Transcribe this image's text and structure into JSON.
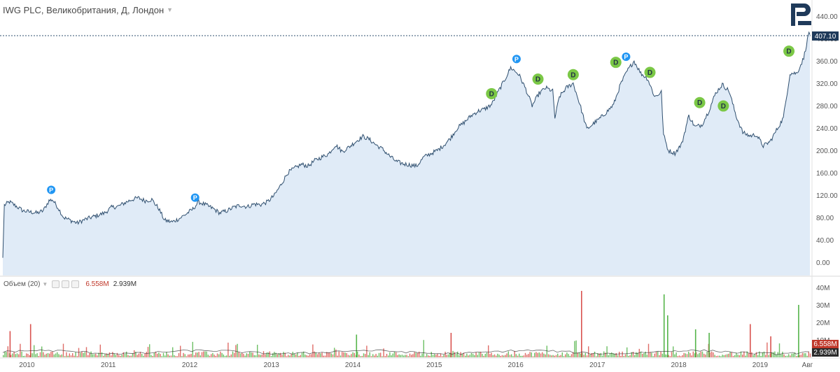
{
  "header": {
    "title": "IWG PLC, Великобритания, Д, Лондон"
  },
  "price_badge": "407.10",
  "volume_panel": {
    "label": "Объем (20)",
    "value_red": "6.558M",
    "value_black": "2.939M",
    "badge_red": "6.558M",
    "badge_black": "2.939M"
  },
  "colors": {
    "line": "#2f4f6f",
    "area": "#dbe8f6",
    "badge_bg": "#1f3a5a",
    "marker_d": "#7bc846",
    "marker_p": "#2196f3",
    "vol_up": "#55b44a",
    "vol_down": "#d9534f",
    "logo": "#1f3a5a"
  },
  "icons": {
    "logo": "brand-logo-icon",
    "marker_d": "dividend-marker-icon",
    "marker_p": "split-marker-icon"
  },
  "chart_data": [
    {
      "type": "area",
      "title": "IWG PLC, Великобритания, Д, Лондон",
      "ylim": [
        -20,
        450
      ],
      "y_ticks": [
        "0.00",
        "40.00",
        "80.00",
        "120.00",
        "160.00",
        "200.00",
        "240.00",
        "280.00",
        "320.00",
        "360.00",
        "400.00",
        "440.00"
      ],
      "x_ticks": [
        "2010",
        "2011",
        "2012",
        "2013",
        "2014",
        "2015",
        "2016",
        "2017",
        "2018",
        "2019",
        "Авг"
      ],
      "last_price": 407.1,
      "grid": false,
      "series": [
        {
          "values_by_date": [
            [
              "2009-09-15",
              8
            ],
            [
              "2009-09-22",
              102
            ],
            [
              "2009-10-15",
              108
            ],
            [
              "2009-11-15",
              100
            ],
            [
              "2009-12-15",
              92
            ],
            [
              "2010-01-15",
              90
            ],
            [
              "2010-02-15",
              88
            ],
            [
              "2010-03-15",
              92
            ],
            [
              "2010-04-10",
              110
            ],
            [
              "2010-04-25",
              112
            ],
            [
              "2010-05-20",
              98
            ],
            [
              "2010-06-15",
              80
            ],
            [
              "2010-07-15",
              75
            ],
            [
              "2010-08-15",
              70
            ],
            [
              "2010-09-15",
              76
            ],
            [
              "2010-10-15",
              80
            ],
            [
              "2010-11-15",
              84
            ],
            [
              "2010-12-15",
              88
            ],
            [
              "2011-01-15",
              98
            ],
            [
              "2011-02-15",
              100
            ],
            [
              "2011-03-15",
              106
            ],
            [
              "2011-04-15",
              112
            ],
            [
              "2011-05-15",
              115
            ],
            [
              "2011-06-15",
              110
            ],
            [
              "2011-07-15",
              112
            ],
            [
              "2011-08-15",
              96
            ],
            [
              "2011-09-10",
              75
            ],
            [
              "2011-10-15",
              72
            ],
            [
              "2011-11-15",
              78
            ],
            [
              "2011-12-15",
              86
            ],
            [
              "2012-01-15",
              95
            ],
            [
              "2012-02-10",
              108
            ],
            [
              "2012-03-15",
              102
            ],
            [
              "2012-04-15",
              96
            ],
            [
              "2012-05-15",
              88
            ],
            [
              "2012-06-15",
              92
            ],
            [
              "2012-07-15",
              98
            ],
            [
              "2012-08-15",
              102
            ],
            [
              "2012-09-15",
              99
            ],
            [
              "2012-10-15",
              104
            ],
            [
              "2012-11-15",
              103
            ],
            [
              "2012-12-15",
              108
            ],
            [
              "2013-01-15",
              120
            ],
            [
              "2013-02-15",
              140
            ],
            [
              "2013-03-15",
              160
            ],
            [
              "2013-04-15",
              168
            ],
            [
              "2013-05-15",
              175
            ],
            [
              "2013-06-15",
              172
            ],
            [
              "2013-07-15",
              182
            ],
            [
              "2013-08-15",
              188
            ],
            [
              "2013-09-15",
              194
            ],
            [
              "2013-10-15",
              210
            ],
            [
              "2013-11-15",
              198
            ],
            [
              "2013-12-15",
              206
            ],
            [
              "2014-01-15",
              216
            ],
            [
              "2014-02-15",
              225
            ],
            [
              "2014-03-15",
              220
            ],
            [
              "2014-04-15",
              210
            ],
            [
              "2014-05-15",
              202
            ],
            [
              "2014-06-15",
              190
            ],
            [
              "2014-07-15",
              180
            ],
            [
              "2014-08-15",
              176
            ],
            [
              "2014-09-15",
              174
            ],
            [
              "2014-10-15",
              172
            ],
            [
              "2014-11-15",
              188
            ],
            [
              "2014-12-15",
              194
            ],
            [
              "2015-01-15",
              200
            ],
            [
              "2015-02-15",
              210
            ],
            [
              "2015-03-15",
              222
            ],
            [
              "2015-04-15",
              240
            ],
            [
              "2015-05-15",
              250
            ],
            [
              "2015-06-15",
              262
            ],
            [
              "2015-07-15",
              270
            ],
            [
              "2015-08-15",
              274
            ],
            [
              "2015-09-15",
              282
            ],
            [
              "2015-10-15",
              305
            ],
            [
              "2015-11-15",
              328
            ],
            [
              "2015-12-10",
              348
            ],
            [
              "2016-01-15",
              336
            ],
            [
              "2016-02-15",
              310
            ],
            [
              "2016-03-15",
              280
            ],
            [
              "2016-04-15",
              302
            ],
            [
              "2016-05-15",
              312
            ],
            [
              "2016-06-15",
              306
            ],
            [
              "2016-06-25",
              258
            ],
            [
              "2016-07-15",
              296
            ],
            [
              "2016-08-15",
              312
            ],
            [
              "2016-09-15",
              320
            ],
            [
              "2016-10-15",
              282
            ],
            [
              "2016-11-15",
              238
            ],
            [
              "2016-12-15",
              248
            ],
            [
              "2017-01-15",
              258
            ],
            [
              "2017-02-15",
              270
            ],
            [
              "2017-03-15",
              282
            ],
            [
              "2017-04-15",
              318
            ],
            [
              "2017-05-15",
              342
            ],
            [
              "2017-06-15",
              360
            ],
            [
              "2017-07-15",
              338
            ],
            [
              "2017-08-15",
              328
            ],
            [
              "2017-09-15",
              296
            ],
            [
              "2017-10-15",
              304
            ],
            [
              "2017-10-25",
              228
            ],
            [
              "2017-11-15",
              200
            ],
            [
              "2017-12-15",
              195
            ],
            [
              "2018-01-15",
              212
            ],
            [
              "2018-02-15",
              262
            ],
            [
              "2018-03-15",
              242
            ],
            [
              "2018-04-15",
              246
            ],
            [
              "2018-05-15",
              270
            ],
            [
              "2018-06-15",
              302
            ],
            [
              "2018-07-15",
              318
            ],
            [
              "2018-08-15",
              306
            ],
            [
              "2018-09-15",
              262
            ],
            [
              "2018-10-15",
              232
            ],
            [
              "2018-11-15",
              226
            ],
            [
              "2018-12-15",
              228
            ],
            [
              "2019-01-15",
              208
            ],
            [
              "2019-02-15",
              216
            ],
            [
              "2019-03-15",
              236
            ],
            [
              "2019-04-15",
              258
            ],
            [
              "2019-05-15",
              338
            ],
            [
              "2019-06-15",
              338
            ],
            [
              "2019-07-15",
              365
            ],
            [
              "2019-08-01",
              398
            ],
            [
              "2019-08-08",
              412
            ],
            [
              "2019-08-12",
              407.1
            ]
          ]
        }
      ],
      "markers": [
        {
          "label": "P",
          "date": "2010-04-20",
          "value": 112
        },
        {
          "label": "P",
          "date": "2012-01-25",
          "value": 98
        },
        {
          "label": "D",
          "date": "2015-09-15",
          "value": 284
        },
        {
          "label": "P",
          "date": "2016-01-05",
          "value": 346
        },
        {
          "label": "D",
          "date": "2016-04-10",
          "value": 310
        },
        {
          "label": "D",
          "date": "2016-09-15",
          "value": 318
        },
        {
          "label": "D",
          "date": "2017-03-25",
          "value": 340
        },
        {
          "label": "P",
          "date": "2017-05-10",
          "value": 350
        },
        {
          "label": "D",
          "date": "2017-08-25",
          "value": 322
        },
        {
          "label": "D",
          "date": "2018-04-05",
          "value": 268
        },
        {
          "label": "D",
          "date": "2018-07-20",
          "value": 262
        },
        {
          "label": "D",
          "date": "2019-05-10",
          "value": 360
        }
      ]
    },
    {
      "type": "bar",
      "title": "Объем (20)",
      "ylim": [
        0,
        42
      ],
      "y_ticks": [
        "10M",
        "20M",
        "30M",
        "40M"
      ],
      "unit": "M",
      "spikes": [
        {
          "date": "2016-10-20",
          "value": 38,
          "direction": "down"
        },
        {
          "date": "2017-10-25",
          "value": 36,
          "direction": "up"
        },
        {
          "date": "2017-11-10",
          "value": 24,
          "direction": "up"
        },
        {
          "date": "2019-06-20",
          "value": 30,
          "direction": "up"
        },
        {
          "date": "2018-11-15",
          "value": 19,
          "direction": "down"
        },
        {
          "date": "2015-03-15",
          "value": 14,
          "direction": "down"
        },
        {
          "date": "2014-01-15",
          "value": 13,
          "direction": "up"
        },
        {
          "date": "2010-01-15",
          "value": 19,
          "direction": "down"
        },
        {
          "date": "2009-10-15",
          "value": 15,
          "direction": "down"
        },
        {
          "date": "2018-03-15",
          "value": 16,
          "direction": "up"
        },
        {
          "date": "2018-05-15",
          "value": 14,
          "direction": "up"
        },
        {
          "date": "2019-02-15",
          "value": 12,
          "direction": "down"
        }
      ]
    }
  ]
}
